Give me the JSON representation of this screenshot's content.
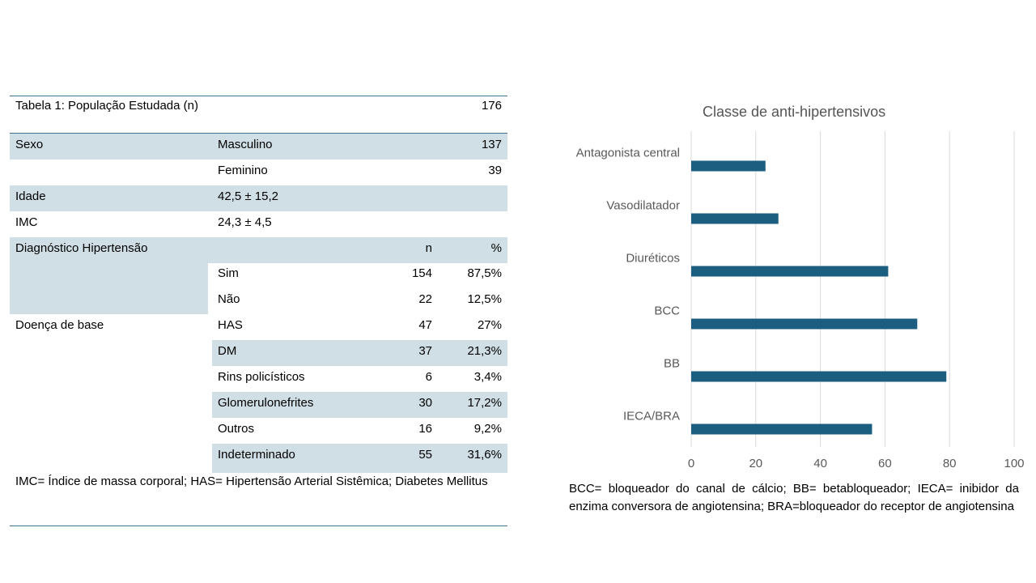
{
  "table": {
    "title": "Tabela 1: População Estudada (n)",
    "total": "176",
    "rows": [
      {
        "c1": "Sexo",
        "c2": "Masculino",
        "c3": "",
        "c4": "137"
      },
      {
        "c1": "",
        "c2": "Feminino",
        "c3": "",
        "c4": "39"
      },
      {
        "c1": "Idade",
        "c2": "42,5 ± 15,2",
        "c3": "",
        "c4": ""
      },
      {
        "c1": "IMC",
        "c2": "24,3 ± 4,5",
        "c3": "",
        "c4": ""
      },
      {
        "c1": "Diagnóstico Hipertensão",
        "c2": "",
        "c3": "n",
        "c4": "%"
      },
      {
        "c1": "",
        "c2": "Sim",
        "c3": "154",
        "c4": "87,5%"
      },
      {
        "c1": "",
        "c2": "Não",
        "c3": "22",
        "c4": "12,5%"
      },
      {
        "c1": "Doença de base",
        "c2": "HAS",
        "c3": "47",
        "c4": "27%"
      },
      {
        "c1": "",
        "c2": "DM",
        "c3": "37",
        "c4": "21,3%"
      },
      {
        "c1": "",
        "c2": "Rins policísticos",
        "c3": "6",
        "c4": "3,4%"
      },
      {
        "c1": "",
        "c2": "Glomerulonefrites",
        "c3": "30",
        "c4": "17,2%"
      },
      {
        "c1": "",
        "c2": "Outros",
        "c3": "16",
        "c4": "9,2%"
      },
      {
        "c1": "",
        "c2": "Indeterminado",
        "c3": "55",
        "c4": "31,6%"
      }
    ],
    "footnote": "IMC= Índice de massa corporal; HAS= Hipertensão Arterial Sistêmica; Diabetes Mellitus"
  },
  "colors": {
    "bar": "#1b5e80",
    "shade": "#d0dfe6",
    "grid": "#d9d9d9",
    "axis_text": "#595959"
  },
  "chart_data": {
    "type": "bar",
    "orientation": "horizontal",
    "title": "Classe de anti-hipertensivos",
    "categories": [
      "Antagonista central",
      "Vasodilatador",
      "Diuréticos",
      "BCC",
      "BB",
      "IECA/BRA"
    ],
    "values": [
      23,
      27,
      61,
      70,
      79,
      56
    ],
    "xlim": [
      0,
      100
    ],
    "xticks": [
      "0",
      "20",
      "40",
      "60",
      "80",
      "100"
    ],
    "grid": true
  },
  "chart_note": "BCC= bloqueador do canal de cálcio; BB= betabloqueador; IECA= inibidor da enzima conversora de angiotensina; BRA=bloqueador do receptor de angiotensina"
}
